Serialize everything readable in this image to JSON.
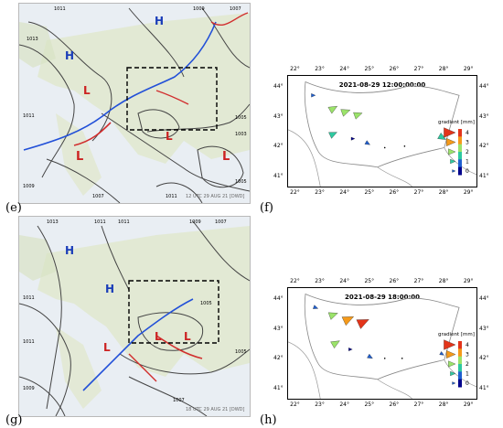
{
  "panels": [
    {
      "label": "(e)",
      "pressure_labels": [
        "1011",
        "1009",
        "1007",
        "1013",
        "1011",
        "1009",
        "1005",
        "1003",
        "1005",
        "1011",
        "1007",
        "1007"
      ],
      "highs": [
        "H",
        "H"
      ],
      "lows": [
        "L",
        "L",
        "L",
        "L"
      ],
      "stamp": "12 UTC 29 AUG 21 [DWD]"
    },
    {
      "label": "(g)",
      "pressure_labels": [
        "1013",
        "1011",
        "1011",
        "1009",
        "1007",
        "1011",
        "1011",
        "1005",
        "1005",
        "1009",
        "1007"
      ],
      "highs": [
        "H",
        "H"
      ],
      "lows": [
        "L",
        "L",
        "L"
      ],
      "stamp": "18 UTC 29 AUG 21 [DWD]"
    },
    {
      "label": "(f)",
      "title": "2021-08-29 12:00:00:00",
      "lon_ticks": [
        "22°",
        "23°",
        "24°",
        "25°",
        "26°",
        "27°",
        "28°",
        "29°"
      ],
      "lat_ticks": [
        "44°",
        "43°",
        "42°",
        "41°"
      ],
      "legend_title": "gradient [mm]",
      "legend_values": [
        "4",
        "3",
        "2",
        "1",
        "0"
      ],
      "arrows": [
        {
          "lon": 22.7,
          "lat": 43.75,
          "dir": 0,
          "level": 0.5
        },
        {
          "lon": 23.5,
          "lat": 43.3,
          "dir": -30,
          "level": 2.3
        },
        {
          "lon": 24.0,
          "lat": 43.2,
          "dir": -20,
          "level": 2.4
        },
        {
          "lon": 24.5,
          "lat": 43.1,
          "dir": -20,
          "level": 2.2
        },
        {
          "lon": 23.5,
          "lat": 42.45,
          "dir": -25,
          "level": 2.0
        },
        {
          "lon": 24.3,
          "lat": 42.3,
          "dir": 0,
          "level": 0.3
        },
        {
          "lon": 24.9,
          "lat": 42.15,
          "dir": 30,
          "level": 0.8
        },
        {
          "lon": 25.6,
          "lat": 42.0,
          "dir": 0,
          "level": 0.1
        },
        {
          "lon": 26.4,
          "lat": 42.05,
          "dir": 0,
          "level": 0.1
        },
        {
          "lon": 27.9,
          "lat": 42.35,
          "dir": 30,
          "level": 2.0
        }
      ]
    },
    {
      "label": "(h)",
      "title": "2021-08-29 18:00:00",
      "lon_ticks": [
        "22°",
        "23°",
        "24°",
        "25°",
        "26°",
        "27°",
        "28°",
        "29°"
      ],
      "lat_ticks": [
        "44°",
        "43°",
        "42°",
        "41°"
      ],
      "legend_title": "gradient [mm]",
      "legend_values": [
        "4",
        "3",
        "2",
        "1",
        "0"
      ],
      "arrows": [
        {
          "lon": 22.8,
          "lat": 43.75,
          "dir": 20,
          "level": 0.7
        },
        {
          "lon": 23.5,
          "lat": 43.5,
          "dir": -20,
          "level": 2.4
        },
        {
          "lon": 24.1,
          "lat": 43.35,
          "dir": -25,
          "level": 3.3
        },
        {
          "lon": 24.7,
          "lat": 43.25,
          "dir": -25,
          "level": 3.6
        },
        {
          "lon": 23.6,
          "lat": 42.55,
          "dir": -30,
          "level": 2.3
        },
        {
          "lon": 24.2,
          "lat": 42.35,
          "dir": 0,
          "level": 0.3
        },
        {
          "lon": 25.0,
          "lat": 42.1,
          "dir": 30,
          "level": 0.9
        },
        {
          "lon": 25.6,
          "lat": 42.05,
          "dir": 0,
          "level": 0.1
        },
        {
          "lon": 26.3,
          "lat": 42.05,
          "dir": 0,
          "level": 0.1
        },
        {
          "lon": 27.9,
          "lat": 42.2,
          "dir": 30,
          "level": 0.5
        }
      ]
    }
  ],
  "colors": {
    "level_0": "#00008b",
    "level_1": "#1f5fd0",
    "level_2": "#2ec9a0",
    "level_3": "#9be36a",
    "level_4": "#f59a1a",
    "level_5": "#e3341a",
    "front_cold": "#2250d8",
    "front_warm": "#d12e2e",
    "high": "#1a3db8",
    "low": "#cc2222"
  }
}
